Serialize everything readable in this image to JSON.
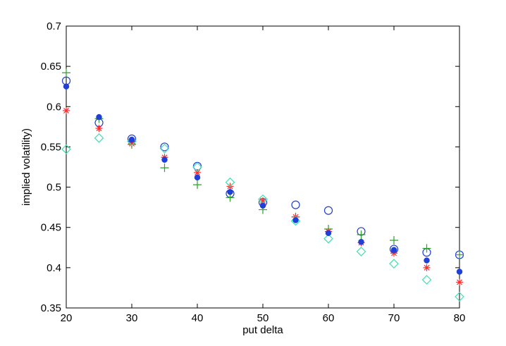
{
  "chart_data": {
    "type": "scatter",
    "title": "",
    "xlabel": "put delta",
    "ylabel": "implied volatility)",
    "xlim": [
      20,
      80
    ],
    "ylim": [
      0.35,
      0.7
    ],
    "xticks": [
      20,
      30,
      40,
      50,
      60,
      70,
      80
    ],
    "yticks": [
      0.35,
      0.4,
      0.45,
      0.5,
      0.55,
      0.6,
      0.65,
      0.7
    ],
    "xtick_labels": [
      "20",
      "30",
      "40",
      "50",
      "60",
      "70",
      "80"
    ],
    "ytick_labels": [
      "0.35",
      "0.4",
      "0.45",
      "0.5",
      "0.55",
      "0.6",
      "0.65",
      "0.7"
    ],
    "grid": false,
    "legend": false,
    "x": [
      20,
      25,
      30,
      35,
      40,
      45,
      50,
      55,
      60,
      65,
      70,
      75,
      80
    ],
    "series": [
      {
        "marker": "circle-open",
        "color": "#1f3fd8",
        "values": [
          0.632,
          0.58,
          0.56,
          0.55,
          0.526,
          0.492,
          0.481,
          0.478,
          0.471,
          0.445,
          0.423,
          0.419,
          0.416
        ]
      },
      {
        "marker": "plus",
        "color": "#2ca02c",
        "values": [
          0.642,
          0.585,
          0.553,
          0.524,
          0.503,
          0.487,
          0.472,
          0.463,
          0.448,
          0.441,
          0.434,
          0.424,
          0.416
        ]
      },
      {
        "marker": "asterisk",
        "color": "#ff2a2a",
        "values": [
          0.595,
          0.573,
          0.554,
          0.537,
          0.518,
          0.501,
          0.483,
          0.463,
          0.445,
          0.431,
          0.418,
          0.4,
          0.382
        ]
      },
      {
        "marker": "diamond-open",
        "color": "#40e0b0",
        "values": [
          0.547,
          0.561,
          0.557,
          0.548,
          0.525,
          0.506,
          0.485,
          0.458,
          0.436,
          0.42,
          0.405,
          0.385,
          0.364
        ]
      },
      {
        "marker": "dot",
        "color": "#1f3fd8",
        "values": [
          0.625,
          0.587,
          0.559,
          0.534,
          0.512,
          0.494,
          0.477,
          0.459,
          0.443,
          0.432,
          0.422,
          0.409,
          0.395
        ]
      }
    ]
  }
}
